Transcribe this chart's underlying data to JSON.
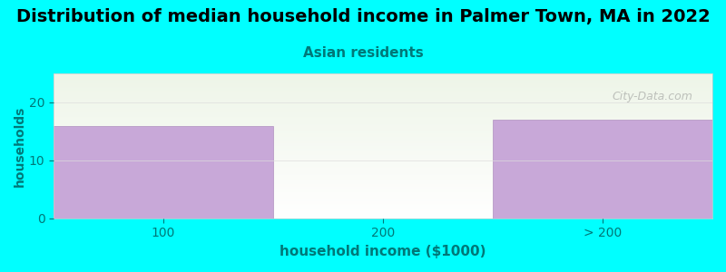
{
  "title": "Distribution of median household income in Palmer Town, MA in 2022",
  "subtitle": "Asian residents",
  "xlabel": "household income ($1000)",
  "ylabel": "households",
  "categories": [
    "100",
    "200",
    "> 200"
  ],
  "values": [
    16,
    0,
    17
  ],
  "bar_color": "#c8a8d8",
  "bar_edge_color": "#b090c0",
  "background_color": "#00ffff",
  "plot_bg_color_top": "#eef5e8",
  "plot_bg_color_bottom": "#ffffff",
  "ylim": [
    0,
    25
  ],
  "yticks": [
    0,
    10,
    20
  ],
  "title_fontsize": 14,
  "subtitle_fontsize": 11,
  "subtitle_color": "#007878",
  "ylabel_color": "#007878",
  "xlabel_color": "#007878",
  "tick_color": "#007878",
  "watermark": "City-Data.com"
}
